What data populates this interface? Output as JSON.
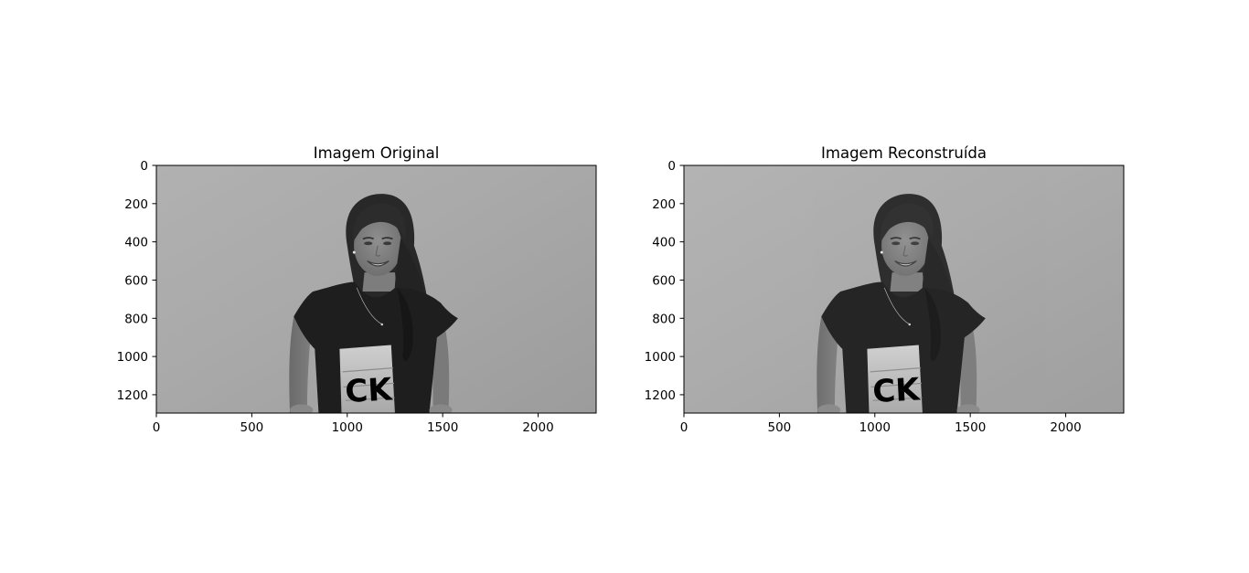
{
  "colors": {
    "background": "#ffffff",
    "axis": "#000000",
    "image_backdrop": "#a7a7a7"
  },
  "chart_data": [
    {
      "type": "image",
      "title": "Imagem Original",
      "colormap": "gray",
      "xlim": [
        0,
        2304
      ],
      "ylim": [
        1296,
        0
      ],
      "xticks": [
        0,
        500,
        1000,
        1500,
        2000
      ],
      "yticks": [
        0,
        200,
        400,
        600,
        800,
        1000,
        1200
      ],
      "xtick_labels": [
        "0",
        "500",
        "1000",
        "1500",
        "2000"
      ],
      "ytick_labels": [
        "0",
        "200",
        "400",
        "600",
        "800",
        "1000",
        "1200"
      ],
      "xlabel": "",
      "ylabel": "",
      "grid": false,
      "shirt_text": "CK"
    },
    {
      "type": "image",
      "title": "Imagem Reconstruída",
      "colormap": "gray",
      "xlim": [
        0,
        2304
      ],
      "ylim": [
        1296,
        0
      ],
      "xticks": [
        0,
        500,
        1000,
        1500,
        2000
      ],
      "yticks": [
        0,
        200,
        400,
        600,
        800,
        1000,
        1200
      ],
      "xtick_labels": [
        "0",
        "500",
        "1000",
        "1500",
        "2000"
      ],
      "ytick_labels": [
        "0",
        "200",
        "400",
        "600",
        "800",
        "1000",
        "1200"
      ],
      "xlabel": "",
      "ylabel": "",
      "grid": false,
      "shirt_text": "CK"
    }
  ]
}
